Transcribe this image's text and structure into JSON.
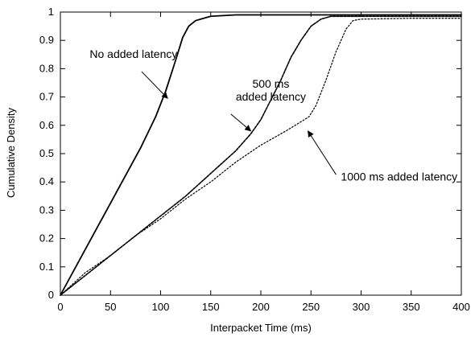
{
  "chart_data": {
    "type": "line",
    "title": "",
    "xlabel": "Interpacket Time (ms)",
    "ylabel": "Cumulative Density",
    "xlim": [
      0,
      400
    ],
    "ylim": [
      0,
      1
    ],
    "x_ticks": [
      "0",
      "50",
      "100",
      "150",
      "200",
      "250",
      "300",
      "350",
      "400"
    ],
    "y_ticks": [
      "0",
      "0.1",
      "0.2",
      "0.3",
      "0.4",
      "0.5",
      "0.6",
      "0.7",
      "0.8",
      "0.9",
      "1"
    ],
    "grid": false,
    "legend": "none",
    "series": [
      {
        "style": "solid",
        "color": "#000000",
        "points": [
          [
            0,
            0
          ],
          [
            20,
            0.13
          ],
          [
            40,
            0.26
          ],
          [
            60,
            0.39
          ],
          [
            80,
            0.52
          ],
          [
            95,
            0.63
          ],
          [
            105,
            0.72
          ],
          [
            115,
            0.83
          ],
          [
            122,
            0.91
          ],
          [
            128,
            0.95
          ],
          [
            135,
            0.97
          ],
          [
            150,
            0.985
          ],
          [
            175,
            0.99
          ],
          [
            250,
            0.99
          ],
          [
            400,
            0.99
          ]
        ]
      },
      {
        "style": "dashed",
        "color": "#000000",
        "points": [
          [
            0,
            0
          ],
          [
            25,
            0.07
          ],
          [
            50,
            0.14
          ],
          [
            75,
            0.21
          ],
          [
            100,
            0.28
          ],
          [
            125,
            0.35
          ],
          [
            150,
            0.43
          ],
          [
            175,
            0.51
          ],
          [
            190,
            0.57
          ],
          [
            200,
            0.62
          ],
          [
            210,
            0.69
          ],
          [
            220,
            0.76
          ],
          [
            230,
            0.84
          ],
          [
            240,
            0.9
          ],
          [
            250,
            0.95
          ],
          [
            260,
            0.975
          ],
          [
            270,
            0.985
          ],
          [
            300,
            0.985
          ],
          [
            350,
            0.985
          ],
          [
            400,
            0.985
          ]
        ]
      },
      {
        "style": "dotted",
        "color": "#000000",
        "points": [
          [
            0,
            0
          ],
          [
            25,
            0.08
          ],
          [
            50,
            0.14
          ],
          [
            75,
            0.21
          ],
          [
            100,
            0.27
          ],
          [
            125,
            0.34
          ],
          [
            150,
            0.4
          ],
          [
            175,
            0.47
          ],
          [
            200,
            0.53
          ],
          [
            225,
            0.58
          ],
          [
            248,
            0.63
          ],
          [
            255,
            0.67
          ],
          [
            265,
            0.76
          ],
          [
            275,
            0.86
          ],
          [
            285,
            0.94
          ],
          [
            292,
            0.97
          ],
          [
            300,
            0.975
          ],
          [
            350,
            0.978
          ],
          [
            400,
            0.978
          ]
        ]
      }
    ],
    "annotations": [
      {
        "lines": [
          "No added latency"
        ],
        "text_at": [
          73,
          0.838
        ],
        "arrow_from": [
          81,
          0.79
        ],
        "arrow_to": [
          107,
          0.695
        ]
      },
      {
        "lines": [
          "500 ms",
          "added latency"
        ],
        "text_at": [
          210,
          0.733
        ],
        "arrow_from": [
          170,
          0.64
        ],
        "arrow_to": [
          190,
          0.58
        ]
      },
      {
        "lines": [
          "1000 ms added latency"
        ],
        "text_at": [
          338,
          0.405
        ],
        "arrow_from": [
          275,
          0.426
        ],
        "arrow_to": [
          247,
          0.58
        ]
      }
    ]
  }
}
